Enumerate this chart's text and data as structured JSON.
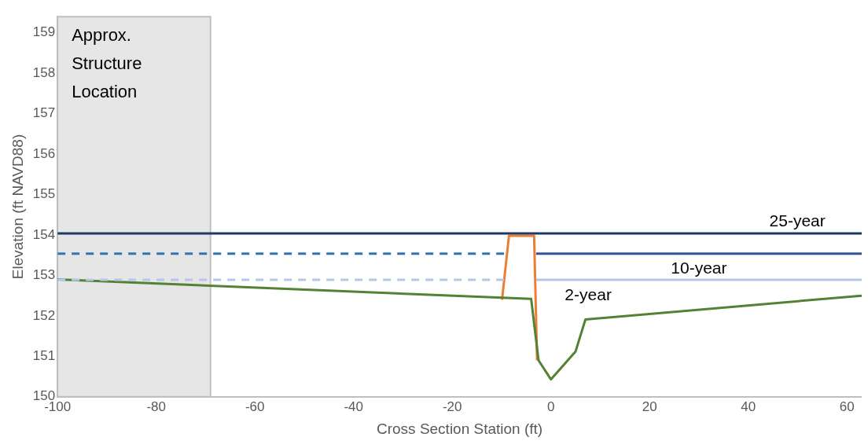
{
  "chart_data": {
    "type": "line",
    "xlabel": "Cross Section Station (ft)",
    "ylabel": "Elevation (ft NAVD88)",
    "xlim": [
      -100,
      63
    ],
    "xticks": [
      -100,
      -80,
      -60,
      -40,
      -20,
      0,
      20,
      40,
      60
    ],
    "ylim": [
      150,
      159.4
    ],
    "yticks": [
      150,
      151,
      152,
      153,
      154,
      155,
      156,
      157,
      158,
      159
    ],
    "grid": false,
    "legend": false,
    "marker": "none",
    "series": [
      {
        "name": "25-year",
        "color": "#1f3864",
        "line_style": "solid",
        "x": [
          -100,
          63
        ],
        "values": [
          154.04,
          154.04
        ]
      },
      {
        "color": "#2e75b6",
        "line_style": "dashed",
        "x": [
          -100,
          -9.5
        ],
        "values": [
          153.54,
          153.54
        ]
      },
      {
        "name": "10-year",
        "color": "#2f5597",
        "line_style": "solid",
        "x": [
          -3,
          63
        ],
        "values": [
          153.54,
          153.54
        ]
      },
      {
        "color": "#b4c7e7",
        "line_style": "dashed",
        "x": [
          -100,
          -9.5
        ],
        "values": [
          152.89,
          152.89
        ]
      },
      {
        "name": "2-year",
        "color": "#b4c7e7",
        "line_style": "solid",
        "x": [
          -3,
          63
        ],
        "values": [
          152.89,
          152.89
        ]
      },
      {
        "color": "#548235",
        "line_style": "solid",
        "x": [
          -100,
          -4,
          -2.5,
          0,
          5,
          7,
          63
        ],
        "values": [
          152.9,
          152.42,
          150.9,
          150.43,
          151.12,
          151.91,
          152.5
        ]
      },
      {
        "color": "#ed7d31",
        "line_style": "solid",
        "x": [
          -9.9,
          -8.5,
          -3.4,
          -2.8
        ],
        "values": [
          152.4,
          153.98,
          153.98,
          150.9
        ]
      }
    ],
    "bands": [
      {
        "axis": "x",
        "from": -100,
        "to": -69,
        "label": "Approx.\nStructure\nLocation",
        "color": "#e7e6e6"
      }
    ]
  }
}
